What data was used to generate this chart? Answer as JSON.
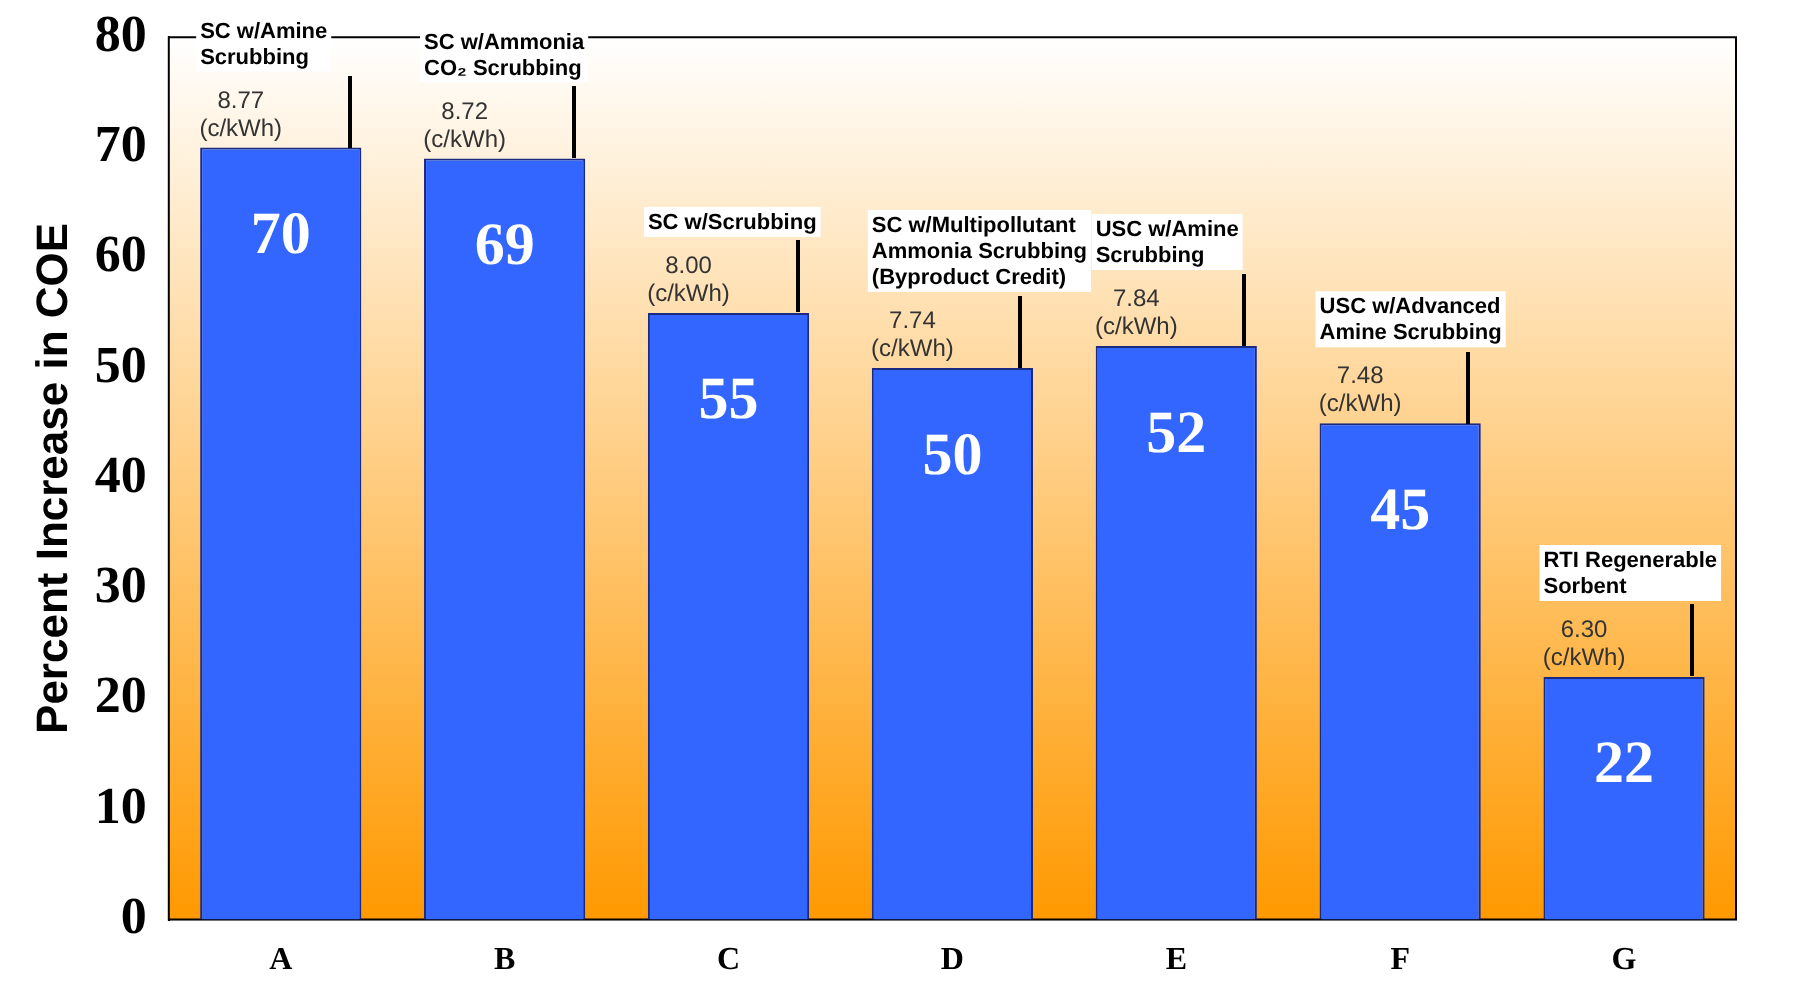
{
  "chart_data": {
    "type": "bar",
    "ylabel": "Percent Increase in COE",
    "categories": [
      "A",
      "B",
      "C",
      "D",
      "E",
      "F",
      "G"
    ],
    "values": [
      70,
      69,
      55,
      50,
      52,
      45,
      22
    ],
    "color": "#3366ff",
    "ylim": [
      0,
      80
    ],
    "yticks": [
      0,
      10,
      20,
      30,
      40,
      50,
      60,
      70,
      80
    ],
    "grid": false,
    "legend": false,
    "data_labels": true,
    "annotations": [
      "SC w/Amine\nScrubbing",
      {
        "text": "8.77\n(c/kWh)",
        "x": "A",
        "y": 70
      },
      "SC w/Ammonia\nCO₂ Scrubbing",
      {
        "text": "8.72\n(c/kWh)",
        "x": "B",
        "y": 69
      },
      "SC w/Scrubbing",
      {
        "text": "8.00\n(c/kWh)",
        "x": "C",
        "y": 55
      },
      "SC w/Multipollutant\nAmmonia Scrubbing\n(Byproduct Credit)",
      {
        "text": "7.74\n(c/kWh)",
        "x": "D",
        "y": 50
      },
      "USC w/Amine\nScrubbing",
      {
        "text": "7.84\n(c/kWh)",
        "x": "E",
        "y": 52
      },
      "USC w/Advanced\nAmine Scrubbing",
      {
        "text": "7.48\n(c/kWh)",
        "x": "F",
        "y": 45
      },
      "RTI Regenerable\nSorbent",
      {
        "text": "6.30\n(c/kWh)",
        "x": "G",
        "y": 22
      }
    ]
  }
}
